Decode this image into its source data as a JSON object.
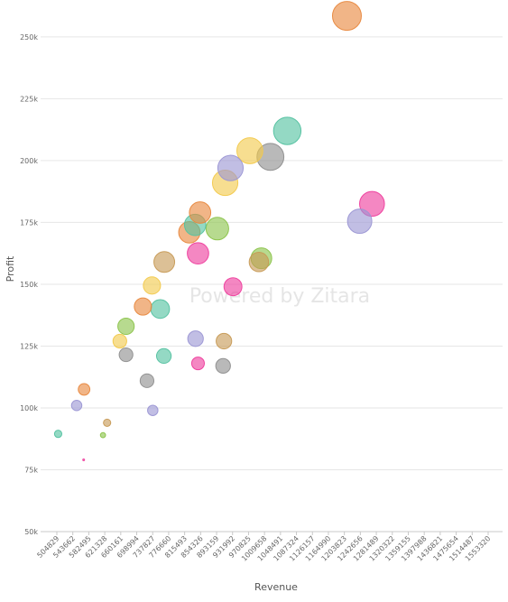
{
  "chart_data": {
    "type": "scatter",
    "xlabel": "Revenue",
    "ylabel": "Profit",
    "watermark": "Powered by Zitara",
    "x_ticks": [
      "504829",
      "543662",
      "582495",
      "621328",
      "660161",
      "698994",
      "737827",
      "776660",
      "815493",
      "854326",
      "893159",
      "931992",
      "970825",
      "1009658",
      "1048491",
      "1087324",
      "1126157",
      "1164990",
      "1203823",
      "1242656",
      "1281489",
      "1320322",
      "1359155",
      "1397988",
      "1436821",
      "1475654",
      "1514487",
      "1553320"
    ],
    "xlim": [
      504829,
      1553320
    ],
    "y_ticks": [
      {
        "value": 50000,
        "label": "50k"
      },
      {
        "value": 75000,
        "label": "75k"
      },
      {
        "value": 100000,
        "label": "100k"
      },
      {
        "value": 125000,
        "label": "125k"
      },
      {
        "value": 150000,
        "label": "150k"
      },
      {
        "value": 175000,
        "label": "175k"
      },
      {
        "value": 200000,
        "label": "200k"
      },
      {
        "value": 225000,
        "label": "225k"
      },
      {
        "value": 250000,
        "label": "250k"
      }
    ],
    "ylim": [
      50000,
      262000
    ],
    "grid": true,
    "legend": "none",
    "palette": {
      "teal": "#53c1a0",
      "purple": "#9b96d4",
      "orange": "#e8883e",
      "pink": "#ee3e9d",
      "green": "#8bc34a",
      "tan": "#c79a55",
      "gray": "#8e8e8e",
      "yellow": "#f2c94c"
    },
    "points": [
      {
        "x": 508000,
        "y": 89500,
        "size": 2,
        "color": "teal"
      },
      {
        "x": 553000,
        "y": 101000,
        "size": 4,
        "color": "purple"
      },
      {
        "x": 571000,
        "y": 107500,
        "size": 5,
        "color": "orange"
      },
      {
        "x": 570000,
        "y": 79000,
        "size": 0.1,
        "color": "pink"
      },
      {
        "x": 617000,
        "y": 89000,
        "size": 1,
        "color": "green"
      },
      {
        "x": 627000,
        "y": 94000,
        "size": 2,
        "color": "tan"
      },
      {
        "x": 658000,
        "y": 127000,
        "size": 7,
        "color": "yellow"
      },
      {
        "x": 673000,
        "y": 121500,
        "size": 7,
        "color": "gray"
      },
      {
        "x": 673000,
        "y": 133000,
        "size": 10,
        "color": "green"
      },
      {
        "x": 714000,
        "y": 141000,
        "size": 11,
        "color": "orange"
      },
      {
        "x": 724000,
        "y": 111000,
        "size": 7,
        "color": "gray"
      },
      {
        "x": 738000,
        "y": 99000,
        "size": 4,
        "color": "purple"
      },
      {
        "x": 736000,
        "y": 149500,
        "size": 11,
        "color": "yellow"
      },
      {
        "x": 756000,
        "y": 140000,
        "size": 13,
        "color": "teal"
      },
      {
        "x": 765000,
        "y": 121000,
        "size": 8,
        "color": "teal"
      },
      {
        "x": 766000,
        "y": 159000,
        "size": 16,
        "color": "tan"
      },
      {
        "x": 827000,
        "y": 171000,
        "size": 17,
        "color": "orange"
      },
      {
        "x": 841000,
        "y": 174000,
        "size": 17,
        "color": "teal"
      },
      {
        "x": 842000,
        "y": 128000,
        "size": 9,
        "color": "purple"
      },
      {
        "x": 848000,
        "y": 118000,
        "size": 6,
        "color": "pink"
      },
      {
        "x": 848000,
        "y": 162500,
        "size": 17,
        "color": "pink"
      },
      {
        "x": 853000,
        "y": 179000,
        "size": 17,
        "color": "orange"
      },
      {
        "x": 895000,
        "y": 172500,
        "size": 19,
        "color": "green"
      },
      {
        "x": 909000,
        "y": 117000,
        "size": 8,
        "color": "gray"
      },
      {
        "x": 911000,
        "y": 127000,
        "size": 9,
        "color": "tan"
      },
      {
        "x": 914000,
        "y": 191000,
        "size": 24,
        "color": "yellow"
      },
      {
        "x": 927000,
        "y": 197000,
        "size": 24,
        "color": "purple"
      },
      {
        "x": 933000,
        "y": 149000,
        "size": 12,
        "color": "pink"
      },
      {
        "x": 974000,
        "y": 204000,
        "size": 25,
        "color": "yellow"
      },
      {
        "x": 996000,
        "y": 159000,
        "size": 14,
        "color": "tan"
      },
      {
        "x": 1002000,
        "y": 160500,
        "size": 16,
        "color": "green"
      },
      {
        "x": 1024000,
        "y": 201500,
        "size": 27,
        "color": "gray"
      },
      {
        "x": 1065000,
        "y": 212000,
        "size": 28,
        "color": "teal"
      },
      {
        "x": 1210000,
        "y": 258500,
        "size": 31,
        "color": "orange"
      },
      {
        "x": 1241000,
        "y": 175500,
        "size": 22,
        "color": "purple"
      },
      {
        "x": 1271000,
        "y": 182500,
        "size": 23,
        "color": "pink"
      }
    ]
  }
}
